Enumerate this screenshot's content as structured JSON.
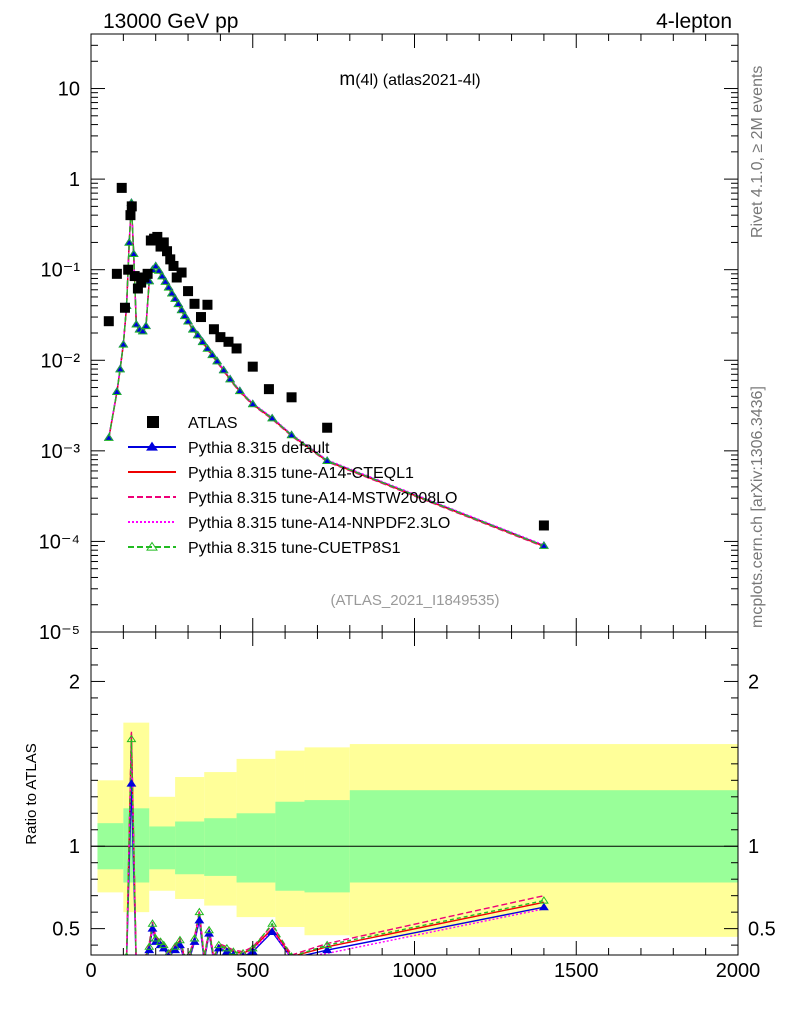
{
  "header": {
    "left": "13000 GeV pp",
    "right": "4-lepton"
  },
  "side_labels": {
    "rivet": "Rivet 4.1.0, ≥ 2M events",
    "mcplots": "mcplots.cern.ch [arXiv:1306.3436]"
  },
  "chart_data": [
    {
      "type": "scatter",
      "panel": "main",
      "title": "m(4l) (atlas2021-4l)",
      "title_main": "m",
      "title_sub": "(4l)",
      "title_paren": " (atlas2021-4l)",
      "watermark": "(ATLAS_2021_I1849535)",
      "xlabel": "",
      "ylabel": "",
      "yscale": "log",
      "xlim": [
        0,
        2000
      ],
      "ylim": [
        1e-05,
        40
      ],
      "x_ticks": [
        0,
        500,
        1000,
        1500,
        2000
      ],
      "y_ticks": [
        {
          "value": 10,
          "label": "10"
        },
        {
          "value": 1,
          "label": "1"
        },
        {
          "value": 0.1,
          "label": "10⁻¹"
        },
        {
          "value": 0.01,
          "label": "10⁻²"
        },
        {
          "value": 0.001,
          "label": "10⁻³"
        },
        {
          "value": 0.0001,
          "label": "10⁻⁴"
        },
        {
          "value": 1e-05,
          "label": "10⁻⁵"
        }
      ],
      "legend": [
        {
          "label": "ATLAS",
          "color": "#000000",
          "marker": "square",
          "line": "none"
        },
        {
          "label": "Pythia 8.315 default",
          "color": "#0000dd",
          "marker": "triangle",
          "line": "solid"
        },
        {
          "label": "Pythia 8.315 tune-A14-CTEQL1",
          "color": "#ee0000",
          "marker": "none",
          "line": "solid"
        },
        {
          "label": "Pythia 8.315 tune-A14-MSTW2008LO",
          "color": "#ee0077",
          "marker": "none",
          "line": "dashed"
        },
        {
          "label": "Pythia 8.315 tune-A14-NNPDF2.3LO",
          "color": "#ff00ff",
          "marker": "none",
          "line": "dotted"
        },
        {
          "label": "Pythia 8.315 tune-CUETP8S1",
          "color": "#22bb22",
          "marker": "open-triangle",
          "line": "dashed"
        }
      ],
      "data_points": {
        "x": [
          55,
          80,
          95,
          105,
          115,
          122,
          126,
          135,
          145,
          155,
          165,
          175,
          185,
          195,
          205,
          215,
          225,
          235,
          245,
          255,
          265,
          280,
          300,
          320,
          340,
          360,
          380,
          400,
          425,
          450,
          500,
          550,
          620,
          730,
          1400
        ],
        "y": [
          0.027,
          0.09,
          0.8,
          0.038,
          0.1,
          0.4,
          0.5,
          0.085,
          0.062,
          0.072,
          0.082,
          0.09,
          0.21,
          0.22,
          0.23,
          0.18,
          0.2,
          0.16,
          0.13,
          0.11,
          0.082,
          0.093,
          0.058,
          0.042,
          0.03,
          0.041,
          0.022,
          0.018,
          0.016,
          0.0135,
          0.0085,
          0.0048,
          0.0039,
          0.0018,
          0.00015
        ]
      },
      "mc_curve": {
        "x": [
          55,
          80,
          90,
          100,
          110,
          118,
          125,
          132,
          140,
          150,
          160,
          170,
          180,
          190,
          200,
          210,
          220,
          230,
          240,
          250,
          260,
          270,
          280,
          290,
          300,
          315,
          330,
          345,
          360,
          375,
          390,
          410,
          430,
          460,
          500,
          560,
          620,
          730,
          1400
        ],
        "y": [
          0.0014,
          0.0045,
          0.008,
          0.015,
          0.04,
          0.2,
          0.55,
          0.15,
          0.025,
          0.022,
          0.021,
          0.024,
          0.075,
          0.1,
          0.11,
          0.098,
          0.085,
          0.074,
          0.064,
          0.055,
          0.048,
          0.042,
          0.036,
          0.031,
          0.027,
          0.022,
          0.019,
          0.016,
          0.0135,
          0.0115,
          0.0098,
          0.0078,
          0.0062,
          0.0046,
          0.0033,
          0.0023,
          0.0015,
          0.00078,
          9e-05
        ]
      }
    },
    {
      "type": "line",
      "panel": "ratio",
      "ylabel": "Ratio to ATLAS",
      "xlim": [
        0,
        2000
      ],
      "ylim": [
        0.34,
        2.3
      ],
      "x_ticks": [
        0,
        500,
        1000,
        1500,
        2000
      ],
      "x_tick_labels": [
        "0",
        "500",
        "1000",
        "1500",
        "2000"
      ],
      "y_ticks": [
        0.5,
        1,
        2
      ],
      "y_tick_labels": [
        "0.5",
        "1",
        "2"
      ],
      "bands": [
        {
          "x0": 20,
          "x1": 100,
          "g": [
            0.86,
            1.14
          ],
          "y": [
            0.72,
            1.4
          ]
        },
        {
          "x0": 100,
          "x1": 180,
          "g": [
            0.78,
            1.23
          ],
          "y": [
            0.6,
            1.75
          ]
        },
        {
          "x0": 180,
          "x1": 260,
          "g": [
            0.86,
            1.12
          ],
          "y": [
            0.73,
            1.3
          ]
        },
        {
          "x0": 260,
          "x1": 350,
          "g": [
            0.83,
            1.15
          ],
          "y": [
            0.68,
            1.42
          ]
        },
        {
          "x0": 350,
          "x1": 450,
          "g": [
            0.82,
            1.17
          ],
          "y": [
            0.64,
            1.45
          ]
        },
        {
          "x0": 450,
          "x1": 570,
          "g": [
            0.78,
            1.2
          ],
          "y": [
            0.57,
            1.53
          ]
        },
        {
          "x0": 570,
          "x1": 660,
          "g": [
            0.73,
            1.27
          ],
          "y": [
            0.51,
            1.58
          ]
        },
        {
          "x0": 660,
          "x1": 800,
          "g": [
            0.72,
            1.28
          ],
          "y": [
            0.46,
            1.6
          ]
        },
        {
          "x0": 800,
          "x1": 2000,
          "g": [
            0.78,
            1.34
          ],
          "y": [
            0.45,
            1.62
          ]
        }
      ],
      "series": [
        {
          "name": "Pythia 8.315 default",
          "color": "#0000dd",
          "dash": "",
          "x": [
            110,
            125,
            140,
            165,
            180,
            190,
            200,
            215,
            225,
            240,
            260,
            275,
            290,
            305,
            320,
            335,
            350,
            365,
            380,
            395,
            420,
            440,
            470,
            500,
            560,
            620,
            730,
            1400
          ],
          "y": [
            0.3,
            1.38,
            0.25,
            0.28,
            0.37,
            0.5,
            0.42,
            0.4,
            0.38,
            0.33,
            0.37,
            0.4,
            0.3,
            0.32,
            0.42,
            0.55,
            0.3,
            0.47,
            0.3,
            0.38,
            0.36,
            0.34,
            0.33,
            0.36,
            0.48,
            0.32,
            0.37,
            0.63
          ]
        },
        {
          "name": "Pythia 8.315 tune-A14-CTEQL1",
          "color": "#ee0000",
          "dash": "",
          "x": [
            110,
            125,
            140,
            165,
            180,
            190,
            200,
            215,
            225,
            240,
            260,
            275,
            290,
            305,
            320,
            335,
            350,
            365,
            380,
            395,
            420,
            440,
            470,
            500,
            560,
            620,
            730,
            1400
          ],
          "y": [
            0.33,
            1.68,
            0.27,
            0.3,
            0.4,
            0.52,
            0.44,
            0.42,
            0.4,
            0.35,
            0.39,
            0.43,
            0.32,
            0.34,
            0.44,
            0.59,
            0.32,
            0.49,
            0.32,
            0.4,
            0.38,
            0.36,
            0.35,
            0.38,
            0.5,
            0.33,
            0.39,
            0.66
          ]
        },
        {
          "name": "Pythia 8.315 tune-A14-MSTW2008LO",
          "color": "#ee0077",
          "dash": "6,3",
          "x": [
            110,
            125,
            140,
            165,
            180,
            190,
            200,
            215,
            225,
            240,
            260,
            275,
            290,
            305,
            320,
            335,
            350,
            365,
            380,
            395,
            420,
            440,
            470,
            500,
            560,
            620,
            730,
            1400
          ],
          "y": [
            0.34,
            1.7,
            0.28,
            0.31,
            0.41,
            0.54,
            0.45,
            0.43,
            0.41,
            0.36,
            0.4,
            0.44,
            0.33,
            0.35,
            0.45,
            0.61,
            0.33,
            0.5,
            0.33,
            0.41,
            0.39,
            0.37,
            0.36,
            0.39,
            0.52,
            0.34,
            0.41,
            0.7
          ]
        },
        {
          "name": "Pythia 8.315 tune-A14-NNPDF2.3LO",
          "color": "#ff00ff",
          "dash": "2,2",
          "x": [
            110,
            125,
            140,
            165,
            180,
            190,
            200,
            215,
            225,
            240,
            260,
            275,
            290,
            305,
            320,
            335,
            350,
            365,
            380,
            395,
            420,
            440,
            470,
            500,
            560,
            620,
            730,
            1400
          ],
          "y": [
            0.32,
            1.62,
            0.26,
            0.29,
            0.38,
            0.5,
            0.42,
            0.4,
            0.38,
            0.33,
            0.37,
            0.41,
            0.31,
            0.33,
            0.43,
            0.57,
            0.31,
            0.47,
            0.31,
            0.39,
            0.37,
            0.35,
            0.34,
            0.37,
            0.49,
            0.32,
            0.35,
            0.62
          ]
        },
        {
          "name": "Pythia 8.315 tune-CUETP8S1",
          "color": "#22bb22",
          "dash": "4,3",
          "x": [
            110,
            125,
            140,
            165,
            180,
            190,
            200,
            215,
            225,
            240,
            260,
            275,
            290,
            305,
            320,
            335,
            350,
            365,
            380,
            395,
            420,
            440,
            470,
            500,
            560,
            620,
            730,
            1400
          ],
          "y": [
            0.33,
            1.65,
            0.27,
            0.3,
            0.39,
            0.53,
            0.44,
            0.42,
            0.4,
            0.35,
            0.39,
            0.43,
            0.32,
            0.34,
            0.44,
            0.6,
            0.32,
            0.49,
            0.32,
            0.4,
            0.38,
            0.36,
            0.35,
            0.38,
            0.53,
            0.33,
            0.4,
            0.67
          ]
        }
      ]
    }
  ],
  "colors": {
    "band_inner": "#99ff99",
    "band_outer": "#ffff99",
    "data": "#000000",
    "side_text": "#777777",
    "watermark": "#999999"
  }
}
